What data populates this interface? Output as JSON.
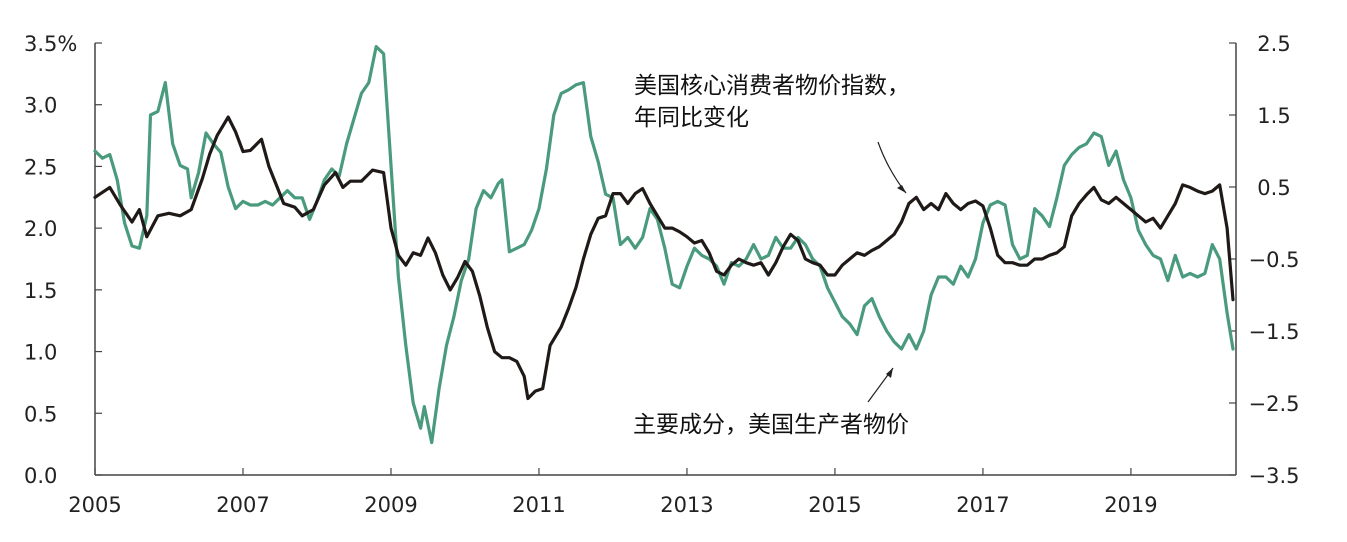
{
  "chart_data": {
    "type": "line",
    "title": "",
    "x_axis": {
      "range": [
        2005,
        2020.42
      ],
      "tick_labels": [
        "2005",
        "2007",
        "2009",
        "2011",
        "2013",
        "2015",
        "2017",
        "2019"
      ]
    },
    "y_left": {
      "range": [
        0,
        3.5
      ],
      "tick_labels": [
        "0.0",
        "0.5",
        "1.0",
        "1.5",
        "2.0",
        "2.5",
        "3.0",
        "3.5%"
      ]
    },
    "y_right": {
      "range": [
        -3.5,
        2.5
      ],
      "tick_labels": [
        "−3.5",
        "−2.5",
        "−1.5",
        "−0.5",
        "0.5",
        "1.5",
        "2.5"
      ]
    },
    "series": [
      {
        "name": "core_cpi",
        "label": "美国核心消费者物价指数，年同比变化",
        "label_lines": [
          "美国核心消费者物价指数，",
          "年同比变化"
        ],
        "color": "#1f1a17",
        "axis": "left",
        "points": [
          [
            2005.0,
            2.25
          ],
          [
            2005.2,
            2.33
          ],
          [
            2005.35,
            2.18
          ],
          [
            2005.5,
            2.05
          ],
          [
            2005.6,
            2.15
          ],
          [
            2005.7,
            1.93
          ],
          [
            2005.85,
            2.1
          ],
          [
            2006.0,
            2.12
          ],
          [
            2006.15,
            2.1
          ],
          [
            2006.3,
            2.15
          ],
          [
            2006.45,
            2.4
          ],
          [
            2006.55,
            2.6
          ],
          [
            2006.65,
            2.75
          ],
          [
            2006.8,
            2.9
          ],
          [
            2006.9,
            2.78
          ],
          [
            2007.0,
            2.62
          ],
          [
            2007.1,
            2.63
          ],
          [
            2007.25,
            2.72
          ],
          [
            2007.35,
            2.5
          ],
          [
            2007.45,
            2.35
          ],
          [
            2007.55,
            2.2
          ],
          [
            2007.7,
            2.17
          ],
          [
            2007.8,
            2.1
          ],
          [
            2007.95,
            2.15
          ],
          [
            2008.1,
            2.35
          ],
          [
            2008.25,
            2.45
          ],
          [
            2008.35,
            2.33
          ],
          [
            2008.45,
            2.38
          ],
          [
            2008.6,
            2.38
          ],
          [
            2008.75,
            2.47
          ],
          [
            2008.9,
            2.45
          ],
          [
            2009.0,
            2.0
          ],
          [
            2009.1,
            1.78
          ],
          [
            2009.2,
            1.7
          ],
          [
            2009.3,
            1.8
          ],
          [
            2009.4,
            1.78
          ],
          [
            2009.5,
            1.92
          ],
          [
            2009.6,
            1.8
          ],
          [
            2009.7,
            1.62
          ],
          [
            2009.8,
            1.5
          ],
          [
            2009.9,
            1.6
          ],
          [
            2010.0,
            1.73
          ],
          [
            2010.1,
            1.65
          ],
          [
            2010.2,
            1.45
          ],
          [
            2010.3,
            1.2
          ],
          [
            2010.4,
            1.0
          ],
          [
            2010.5,
            0.95
          ],
          [
            2010.6,
            0.95
          ],
          [
            2010.7,
            0.92
          ],
          [
            2010.8,
            0.8
          ],
          [
            2010.85,
            0.62
          ],
          [
            2010.95,
            0.68
          ],
          [
            2011.05,
            0.7
          ],
          [
            2011.15,
            1.05
          ],
          [
            2011.3,
            1.2
          ],
          [
            2011.4,
            1.35
          ],
          [
            2011.5,
            1.52
          ],
          [
            2011.6,
            1.75
          ],
          [
            2011.7,
            1.95
          ],
          [
            2011.8,
            2.08
          ],
          [
            2011.9,
            2.1
          ],
          [
            2012.0,
            2.28
          ],
          [
            2012.1,
            2.28
          ],
          [
            2012.2,
            2.2
          ],
          [
            2012.3,
            2.28
          ],
          [
            2012.4,
            2.32
          ],
          [
            2012.5,
            2.2
          ],
          [
            2012.6,
            2.1
          ],
          [
            2012.7,
            2.0
          ],
          [
            2012.8,
            2.0
          ],
          [
            2012.9,
            1.97
          ],
          [
            2013.0,
            1.93
          ],
          [
            2013.1,
            1.88
          ],
          [
            2013.2,
            1.9
          ],
          [
            2013.3,
            1.8
          ],
          [
            2013.4,
            1.65
          ],
          [
            2013.5,
            1.62
          ],
          [
            2013.6,
            1.7
          ],
          [
            2013.7,
            1.75
          ],
          [
            2013.8,
            1.72
          ],
          [
            2013.9,
            1.7
          ],
          [
            2014.0,
            1.72
          ],
          [
            2014.1,
            1.62
          ],
          [
            2014.2,
            1.72
          ],
          [
            2014.3,
            1.85
          ],
          [
            2014.4,
            1.95
          ],
          [
            2014.5,
            1.9
          ],
          [
            2014.6,
            1.75
          ],
          [
            2014.7,
            1.72
          ],
          [
            2014.8,
            1.7
          ],
          [
            2014.9,
            1.62
          ],
          [
            2015.0,
            1.62
          ],
          [
            2015.1,
            1.7
          ],
          [
            2015.2,
            1.75
          ],
          [
            2015.3,
            1.8
          ],
          [
            2015.4,
            1.78
          ],
          [
            2015.5,
            1.82
          ],
          [
            2015.6,
            1.85
          ],
          [
            2015.7,
            1.9
          ],
          [
            2015.8,
            1.95
          ],
          [
            2015.9,
            2.05
          ],
          [
            2016.0,
            2.2
          ],
          [
            2016.1,
            2.25
          ],
          [
            2016.2,
            2.15
          ],
          [
            2016.3,
            2.2
          ],
          [
            2016.4,
            2.15
          ],
          [
            2016.5,
            2.28
          ],
          [
            2016.6,
            2.2
          ],
          [
            2016.7,
            2.15
          ],
          [
            2016.8,
            2.2
          ],
          [
            2016.9,
            2.22
          ],
          [
            2017.0,
            2.18
          ],
          [
            2017.1,
            2.0
          ],
          [
            2017.2,
            1.78
          ],
          [
            2017.3,
            1.72
          ],
          [
            2017.4,
            1.72
          ],
          [
            2017.5,
            1.7
          ],
          [
            2017.6,
            1.7
          ],
          [
            2017.7,
            1.75
          ],
          [
            2017.8,
            1.75
          ],
          [
            2017.9,
            1.78
          ],
          [
            2018.0,
            1.8
          ],
          [
            2018.1,
            1.85
          ],
          [
            2018.2,
            2.1
          ],
          [
            2018.3,
            2.2
          ],
          [
            2018.4,
            2.27
          ],
          [
            2018.5,
            2.33
          ],
          [
            2018.6,
            2.23
          ],
          [
            2018.7,
            2.2
          ],
          [
            2018.8,
            2.25
          ],
          [
            2018.9,
            2.2
          ],
          [
            2019.0,
            2.15
          ],
          [
            2019.1,
            2.1
          ],
          [
            2019.2,
            2.05
          ],
          [
            2019.3,
            2.08
          ],
          [
            2019.4,
            2.0
          ],
          [
            2019.5,
            2.1
          ],
          [
            2019.6,
            2.2
          ],
          [
            2019.7,
            2.35
          ],
          [
            2019.8,
            2.33
          ],
          [
            2019.9,
            2.3
          ],
          [
            2020.0,
            2.28
          ],
          [
            2020.1,
            2.3
          ],
          [
            2020.2,
            2.35
          ],
          [
            2020.3,
            2.0
          ],
          [
            2020.38,
            1.42
          ]
        ]
      },
      {
        "name": "ppi_core",
        "label": "主要成分，美国生产者物价",
        "color": "#4a9a7e",
        "axis": "right",
        "points": [
          [
            2005.0,
            1.0
          ],
          [
            2005.1,
            0.9
          ],
          [
            2005.2,
            0.95
          ],
          [
            2005.3,
            0.6
          ],
          [
            2005.4,
            0.0
          ],
          [
            2005.5,
            -0.32
          ],
          [
            2005.6,
            -0.35
          ],
          [
            2005.7,
            0.1
          ],
          [
            2005.75,
            1.5
          ],
          [
            2005.85,
            1.55
          ],
          [
            2005.95,
            1.95
          ],
          [
            2006.05,
            1.1
          ],
          [
            2006.15,
            0.8
          ],
          [
            2006.25,
            0.75
          ],
          [
            2006.3,
            0.35
          ],
          [
            2006.4,
            0.7
          ],
          [
            2006.5,
            1.25
          ],
          [
            2006.6,
            1.1
          ],
          [
            2006.7,
            0.98
          ],
          [
            2006.8,
            0.5
          ],
          [
            2006.9,
            0.2
          ],
          [
            2007.0,
            0.3
          ],
          [
            2007.1,
            0.25
          ],
          [
            2007.2,
            0.25
          ],
          [
            2007.3,
            0.3
          ],
          [
            2007.4,
            0.25
          ],
          [
            2007.5,
            0.35
          ],
          [
            2007.6,
            0.45
          ],
          [
            2007.7,
            0.35
          ],
          [
            2007.8,
            0.35
          ],
          [
            2007.9,
            0.05
          ],
          [
            2008.0,
            0.3
          ],
          [
            2008.1,
            0.6
          ],
          [
            2008.2,
            0.75
          ],
          [
            2008.3,
            0.65
          ],
          [
            2008.4,
            1.1
          ],
          [
            2008.5,
            1.45
          ],
          [
            2008.6,
            1.8
          ],
          [
            2008.7,
            1.95
          ],
          [
            2008.8,
            2.45
          ],
          [
            2008.9,
            2.35
          ],
          [
            2009.0,
            0.8
          ],
          [
            2009.1,
            -0.75
          ],
          [
            2009.2,
            -1.7
          ],
          [
            2009.3,
            -2.5
          ],
          [
            2009.4,
            -2.85
          ],
          [
            2009.45,
            -2.55
          ],
          [
            2009.55,
            -3.05
          ],
          [
            2009.65,
            -2.3
          ],
          [
            2009.75,
            -1.7
          ],
          [
            2009.85,
            -1.3
          ],
          [
            2009.95,
            -0.8
          ],
          [
            2010.05,
            -0.5
          ],
          [
            2010.15,
            0.2
          ],
          [
            2010.25,
            0.45
          ],
          [
            2010.35,
            0.35
          ],
          [
            2010.45,
            0.55
          ],
          [
            2010.5,
            0.6
          ],
          [
            2010.6,
            -0.4
          ],
          [
            2010.7,
            -0.35
          ],
          [
            2010.8,
            -0.3
          ],
          [
            2010.9,
            -0.1
          ],
          [
            2011.0,
            0.2
          ],
          [
            2011.1,
            0.75
          ],
          [
            2011.2,
            1.5
          ],
          [
            2011.3,
            1.8
          ],
          [
            2011.4,
            1.85
          ],
          [
            2011.5,
            1.92
          ],
          [
            2011.6,
            1.95
          ],
          [
            2011.7,
            1.2
          ],
          [
            2011.8,
            0.85
          ],
          [
            2011.9,
            0.4
          ],
          [
            2012.0,
            0.35
          ],
          [
            2012.1,
            -0.3
          ],
          [
            2012.2,
            -0.2
          ],
          [
            2012.3,
            -0.35
          ],
          [
            2012.4,
            -0.2
          ],
          [
            2012.5,
            0.2
          ],
          [
            2012.6,
            0.05
          ],
          [
            2012.7,
            -0.35
          ],
          [
            2012.8,
            -0.85
          ],
          [
            2012.9,
            -0.9
          ],
          [
            2013.0,
            -0.6
          ],
          [
            2013.1,
            -0.35
          ],
          [
            2013.2,
            -0.45
          ],
          [
            2013.3,
            -0.5
          ],
          [
            2013.4,
            -0.6
          ],
          [
            2013.5,
            -0.85
          ],
          [
            2013.6,
            -0.55
          ],
          [
            2013.7,
            -0.6
          ],
          [
            2013.8,
            -0.5
          ],
          [
            2013.9,
            -0.3
          ],
          [
            2014.0,
            -0.5
          ],
          [
            2014.1,
            -0.45
          ],
          [
            2014.2,
            -0.2
          ],
          [
            2014.3,
            -0.35
          ],
          [
            2014.4,
            -0.35
          ],
          [
            2014.5,
            -0.2
          ],
          [
            2014.6,
            -0.3
          ],
          [
            2014.7,
            -0.5
          ],
          [
            2014.8,
            -0.6
          ],
          [
            2014.9,
            -0.9
          ],
          [
            2015.0,
            -1.1
          ],
          [
            2015.1,
            -1.3
          ],
          [
            2015.2,
            -1.4
          ],
          [
            2015.3,
            -1.55
          ],
          [
            2015.4,
            -1.15
          ],
          [
            2015.5,
            -1.05
          ],
          [
            2015.6,
            -1.3
          ],
          [
            2015.7,
            -1.5
          ],
          [
            2015.8,
            -1.65
          ],
          [
            2015.9,
            -1.75
          ],
          [
            2016.0,
            -1.55
          ],
          [
            2016.1,
            -1.75
          ],
          [
            2016.2,
            -1.5
          ],
          [
            2016.3,
            -1.0
          ],
          [
            2016.4,
            -0.75
          ],
          [
            2016.5,
            -0.75
          ],
          [
            2016.6,
            -0.85
          ],
          [
            2016.7,
            -0.6
          ],
          [
            2016.8,
            -0.75
          ],
          [
            2016.9,
            -0.5
          ],
          [
            2017.0,
            0.0
          ],
          [
            2017.1,
            0.25
          ],
          [
            2017.2,
            0.3
          ],
          [
            2017.3,
            0.25
          ],
          [
            2017.4,
            -0.3
          ],
          [
            2017.5,
            -0.5
          ],
          [
            2017.6,
            -0.45
          ],
          [
            2017.7,
            0.2
          ],
          [
            2017.8,
            0.1
          ],
          [
            2017.9,
            -0.05
          ],
          [
            2018.0,
            0.35
          ],
          [
            2018.1,
            0.8
          ],
          [
            2018.2,
            0.95
          ],
          [
            2018.3,
            1.05
          ],
          [
            2018.4,
            1.1
          ],
          [
            2018.5,
            1.25
          ],
          [
            2018.6,
            1.2
          ],
          [
            2018.7,
            0.8
          ],
          [
            2018.8,
            1.0
          ],
          [
            2018.9,
            0.6
          ],
          [
            2019.0,
            0.35
          ],
          [
            2019.1,
            -0.1
          ],
          [
            2019.2,
            -0.3
          ],
          [
            2019.3,
            -0.45
          ],
          [
            2019.4,
            -0.5
          ],
          [
            2019.5,
            -0.8
          ],
          [
            2019.6,
            -0.45
          ],
          [
            2019.7,
            -0.75
          ],
          [
            2019.8,
            -0.7
          ],
          [
            2019.9,
            -0.75
          ],
          [
            2020.0,
            -0.7
          ],
          [
            2020.1,
            -0.3
          ],
          [
            2020.2,
            -0.5
          ],
          [
            2020.3,
            -1.25
          ],
          [
            2020.38,
            -1.75
          ]
        ]
      }
    ]
  }
}
